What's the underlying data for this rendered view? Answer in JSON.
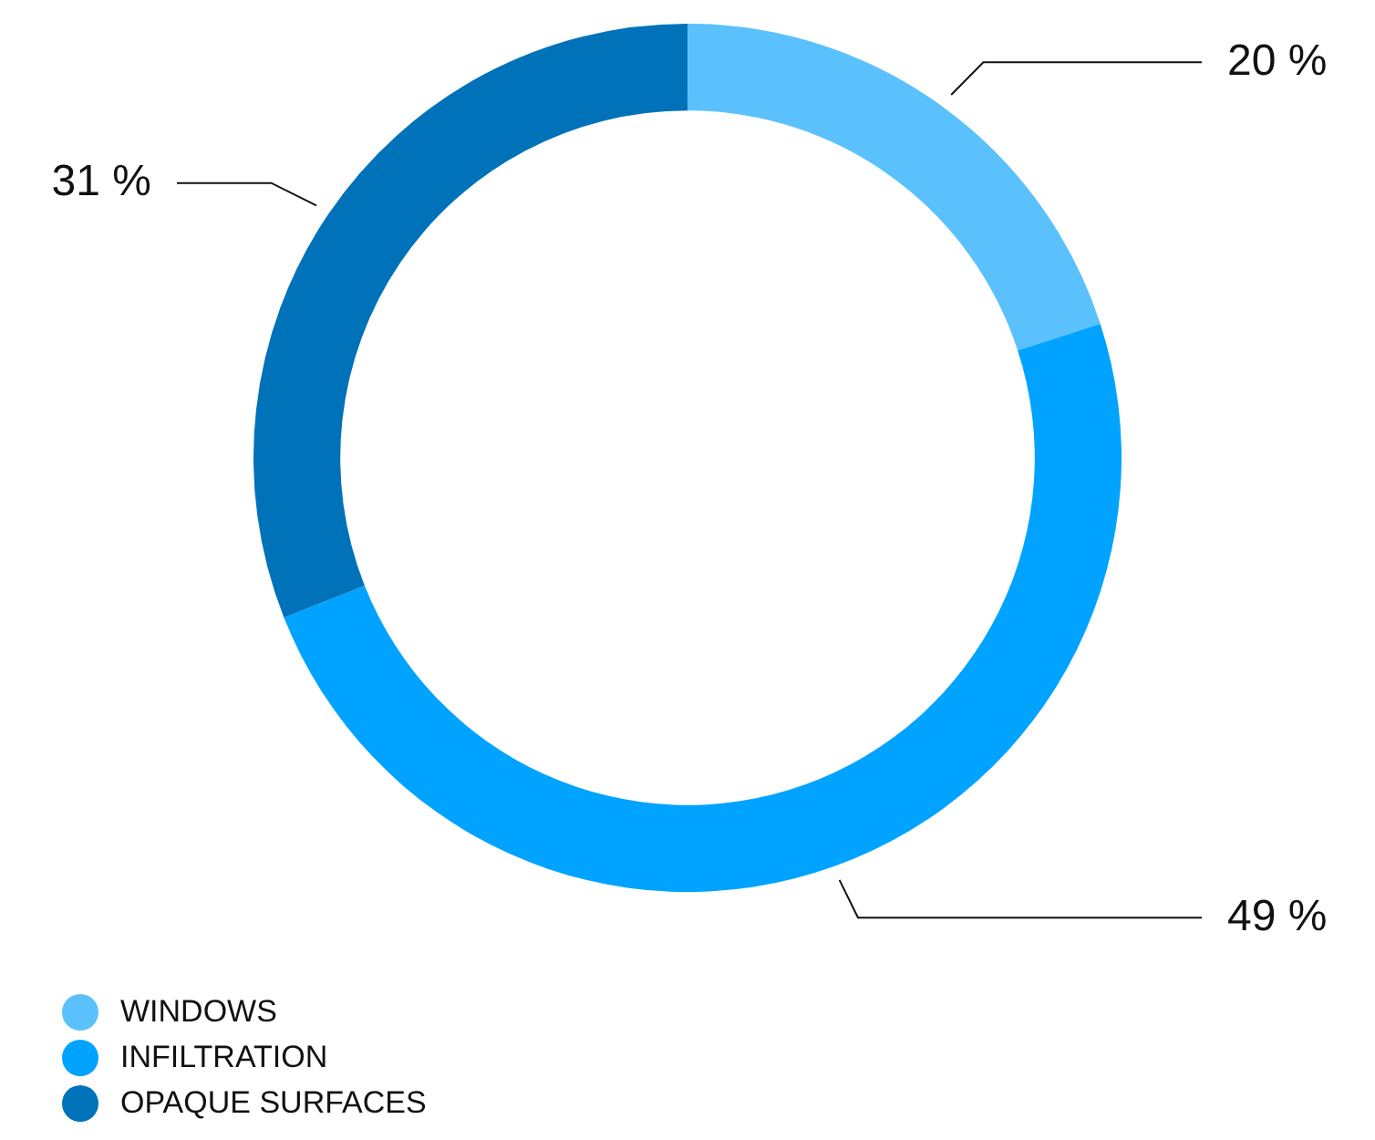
{
  "chart_data": {
    "type": "donut",
    "categories": [
      "WINDOWS",
      "INFILTRATION",
      "OPAQUE SURFACES"
    ],
    "values": [
      20,
      49,
      31
    ],
    "colors": [
      "#5ac1fd",
      "#00a3ff",
      "#0072b9"
    ],
    "value_labels": [
      "20 %",
      "49 %",
      "31 %"
    ],
    "legend": "bottom left"
  }
}
